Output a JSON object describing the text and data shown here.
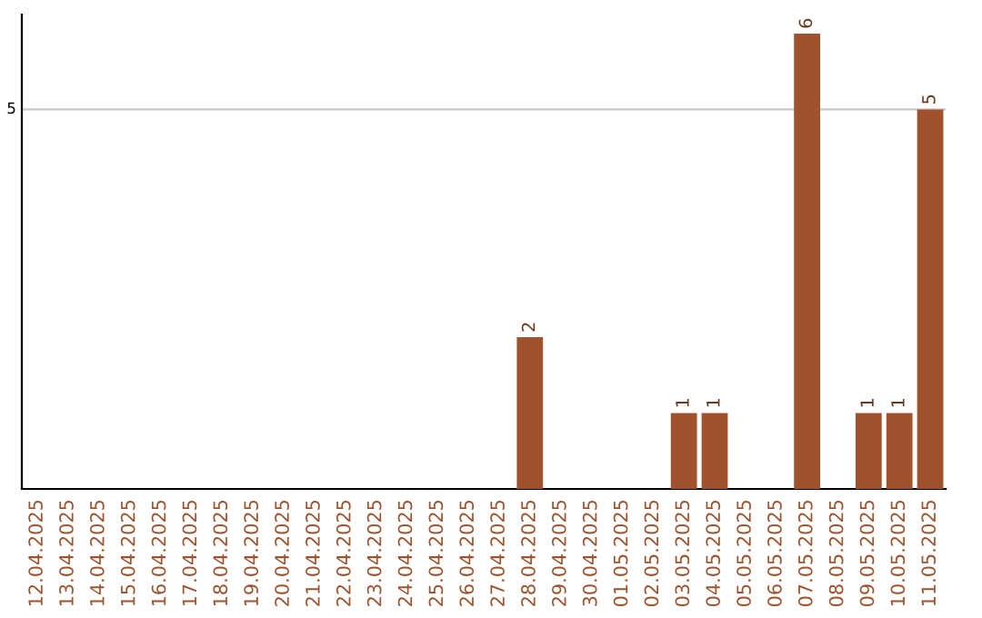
{
  "chart_data": {
    "type": "bar",
    "categories": [
      "12.04.2025",
      "13.04.2025",
      "14.04.2025",
      "15.04.2025",
      "16.04.2025",
      "17.04.2025",
      "18.04.2025",
      "19.04.2025",
      "20.04.2025",
      "21.04.2025",
      "22.04.2025",
      "23.04.2025",
      "24.04.2025",
      "25.04.2025",
      "26.04.2025",
      "27.04.2025",
      "28.04.2025",
      "29.04.2025",
      "30.04.2025",
      "01.05.2025",
      "02.05.2025",
      "03.05.2025",
      "04.05.2025",
      "05.05.2025",
      "06.05.2025",
      "07.05.2025",
      "08.05.2025",
      "09.05.2025",
      "10.05.2025",
      "11.05.2025"
    ],
    "values": [
      null,
      null,
      null,
      null,
      null,
      null,
      null,
      null,
      null,
      null,
      null,
      null,
      null,
      null,
      null,
      null,
      2,
      null,
      null,
      null,
      null,
      1,
      1,
      null,
      null,
      6,
      null,
      1,
      1,
      5
    ],
    "value_labels": [
      null,
      null,
      null,
      null,
      null,
      null,
      null,
      null,
      null,
      null,
      null,
      null,
      null,
      null,
      null,
      null,
      "2",
      null,
      null,
      null,
      null,
      "1",
      "1",
      null,
      null,
      "6",
      null,
      "1",
      "1",
      "5"
    ],
    "ylim": [
      0,
      6.25
    ],
    "color": "#a0522d",
    "ref_lines": [
      {
        "axis": "y",
        "value": 5,
        "label": "5",
        "color": "#c8c8c8"
      }
    ]
  }
}
